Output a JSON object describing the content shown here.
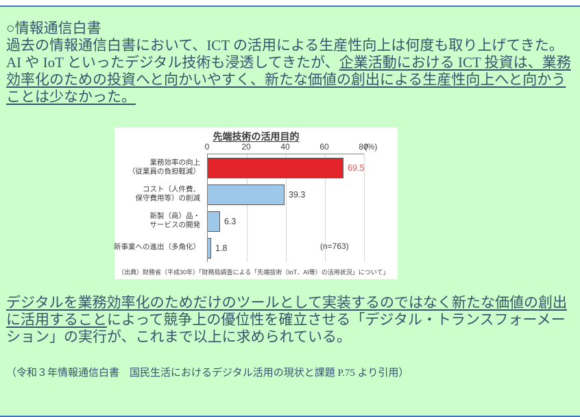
{
  "colors": {
    "panel_background": "#ccfecc",
    "panel_border": "#4374b9",
    "body_text": "#35566a",
    "bar_red": "#e3242b",
    "bar_blue": "#9dc8ea",
    "value_red": "#e25056"
  },
  "paragraph1": {
    "heading": "○情報通信白書",
    "line2": "過去の情報通信白書において、ICT の活用による生産性向上は何度も取り上げてきた。",
    "line3_normal": "AI や IoT といったデジタル技術も浸透してきたが、",
    "line3_underlined": "企業活動における ICT 投資は、業務",
    "line4_underlined": "効率化のための投資へと向かいやすく、新たな価値の創出による生産性向上へと向かう",
    "line5_underlined": "ことは少なかった。"
  },
  "paragraph2": {
    "line1_underlined": "デジタルを業務効率化のためだけのツールとして実装するのではなく新たな価値の創出",
    "line2_underlined": "に活用すること",
    "line2_normal": "によって競争上の優位性を確立させる「デジタル・トランスフォーメー",
    "line3": "ション」の実行が、これまで以上に求められている。"
  },
  "citation": "（令和３年情報通信白書　国民生活におけるデジタル活用の現状と課題 P.75 より引用）",
  "chart_data": {
    "type": "bar",
    "orientation": "horizontal",
    "title": "先端技術の活用目的",
    "categories": [
      "業務効率の向上（従業員の負担軽減）",
      "コスト（人件費、保守費用等）の削減",
      "新製（商）品・サービスの開発",
      "新事業への進出（多角化）"
    ],
    "values": [
      69.5,
      39.3,
      6.3,
      1.8
    ],
    "xlim": [
      0,
      80
    ],
    "tick_labels": [
      "0",
      "20",
      "40",
      "60",
      "80"
    ],
    "unit_label": "(%)",
    "grid": true,
    "annotation": "(n=763)",
    "source": "（出典）財務省（平成30年）「財務局調査による「先端技術（IoT、AI等）の活用状況」について」",
    "rows": [
      {
        "label_line1": "業務効率の向上",
        "label_line2": "（従業員の負担軽減）",
        "value": 69.5,
        "value_label": "69.5",
        "bar_color": "#e3242b",
        "value_color": "#e25056"
      },
      {
        "label_line1": "コスト（人件費、",
        "label_line2": "保守費用等）の削減",
        "value": 39.3,
        "value_label": "39.3",
        "bar_color": "#9dc8ea",
        "value_color": "#404040"
      },
      {
        "label_line1": "新製（商）品・",
        "label_line2": "サービスの開発",
        "value": 6.3,
        "value_label": "6.3",
        "bar_color": "#9dc8ea",
        "value_color": "#404040"
      },
      {
        "label_line1": "新事業への進出（多角化）",
        "label_line2": "",
        "value": 1.8,
        "value_label": "1.8",
        "bar_color": "#9dc8ea",
        "value_color": "#404040"
      }
    ]
  }
}
